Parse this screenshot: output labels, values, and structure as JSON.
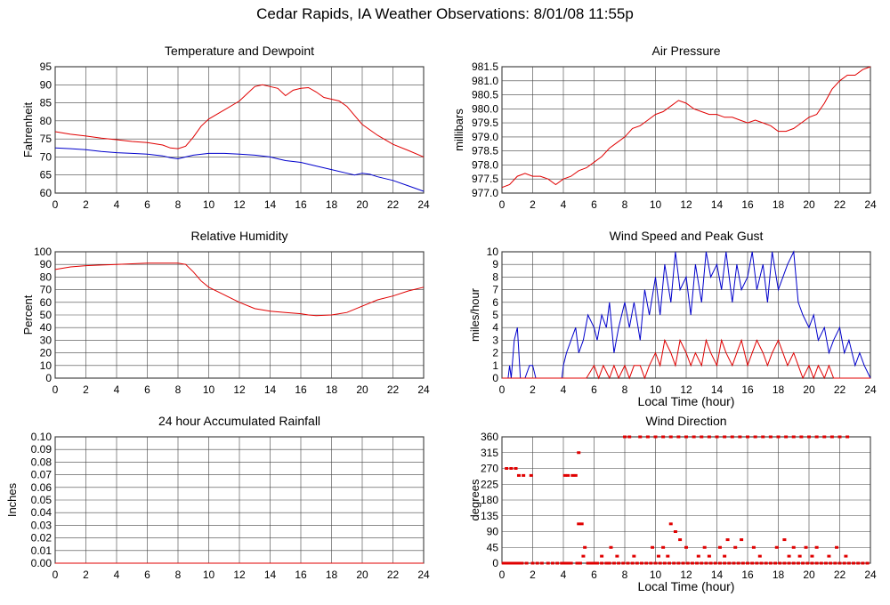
{
  "title": "Cedar Rapids, IA Weather Observations: 8/01/08 11:55p",
  "colors": {
    "red": "#e00000",
    "blue": "#0000cc",
    "grid": "#000000"
  },
  "chart_data": [
    {
      "id": "temp",
      "type": "line",
      "title": "Temperature and Dewpoint",
      "xlabel": "",
      "ylabel": "Fahrenheit",
      "xlim": [
        0,
        24
      ],
      "ylim": [
        60,
        95
      ],
      "xticks": [
        0,
        2,
        4,
        6,
        8,
        10,
        12,
        14,
        16,
        18,
        20,
        22,
        24
      ],
      "yticks": [
        60,
        65,
        70,
        75,
        80,
        85,
        90,
        95
      ],
      "series": [
        {
          "color": "#e00000",
          "x": [
            0,
            1,
            2,
            3,
            4,
            5,
            6,
            7,
            7.5,
            8,
            8.5,
            9,
            9.5,
            10,
            11,
            12,
            12.5,
            13,
            13.5,
            14,
            14.5,
            15,
            15.5,
            16,
            16.5,
            17,
            17.5,
            18,
            18.5,
            19,
            19.5,
            20,
            21,
            22,
            23,
            24
          ],
          "y": [
            77,
            76.3,
            75.8,
            75.2,
            74.8,
            74.3,
            74,
            73.3,
            72.5,
            72.3,
            73,
            75.5,
            78.5,
            80.5,
            83,
            85.5,
            87.5,
            89.5,
            90,
            89.5,
            89,
            87,
            88.5,
            89,
            89.2,
            88,
            86.5,
            86,
            85.5,
            84,
            81.5,
            79,
            76,
            73.5,
            71.8,
            70
          ]
        },
        {
          "color": "#0000cc",
          "x": [
            0,
            1,
            2,
            3,
            4,
            5,
            6,
            7,
            7.5,
            8,
            8.5,
            9,
            10,
            11,
            12,
            13,
            14,
            14.5,
            15,
            16,
            17,
            18,
            19,
            19.5,
            20,
            20.5,
            21,
            22,
            23,
            24
          ],
          "y": [
            72.5,
            72.3,
            72,
            71.5,
            71.2,
            71,
            70.8,
            70.3,
            69.8,
            69.5,
            70,
            70.5,
            71,
            71,
            70.8,
            70.5,
            70,
            69.5,
            69,
            68.5,
            67.5,
            66.5,
            65.5,
            65,
            65.5,
            65.2,
            64.5,
            63.5,
            62,
            60.5
          ]
        }
      ]
    },
    {
      "id": "pressure",
      "type": "line",
      "title": "Air Pressure",
      "xlabel": "",
      "ylabel": "millibars",
      "xlim": [
        0,
        24
      ],
      "ylim": [
        977.0,
        981.5
      ],
      "xticks": [
        0,
        2,
        4,
        6,
        8,
        10,
        12,
        14,
        16,
        18,
        20,
        22,
        24
      ],
      "yticks": [
        "977.0",
        "977.5",
        "978.0",
        "978.5",
        "979.0",
        "979.5",
        "980.0",
        "980.5",
        "981.0",
        "981.5"
      ],
      "series": [
        {
          "color": "#e00000",
          "x": [
            0,
            0.5,
            1,
            1.5,
            2,
            2.5,
            3,
            3.5,
            4,
            4.5,
            5,
            5.5,
            6,
            6.5,
            7,
            7.5,
            8,
            8.5,
            9,
            9.5,
            10,
            10.5,
            11,
            11.5,
            12,
            12.5,
            13,
            13.5,
            14,
            14.5,
            15,
            15.5,
            16,
            16.5,
            17,
            17.5,
            18,
            18.5,
            19,
            19.5,
            20,
            20.5,
            21,
            21.5,
            22,
            22.5,
            23,
            23.5,
            24
          ],
          "y": [
            977.2,
            977.3,
            977.6,
            977.7,
            977.6,
            977.6,
            977.5,
            977.3,
            977.5,
            977.6,
            977.8,
            977.9,
            978.1,
            978.3,
            978.6,
            978.8,
            979.0,
            979.3,
            979.4,
            979.6,
            979.8,
            979.9,
            980.1,
            980.3,
            980.2,
            980.0,
            979.9,
            979.8,
            979.8,
            979.7,
            979.7,
            979.6,
            979.5,
            979.6,
            979.5,
            979.4,
            979.2,
            979.2,
            979.3,
            979.5,
            979.7,
            979.8,
            980.2,
            980.7,
            981.0,
            981.2,
            981.2,
            981.4,
            981.5
          ]
        }
      ]
    },
    {
      "id": "humidity",
      "type": "line",
      "title": "Relative Humidity",
      "xlabel": "",
      "ylabel": "Percent",
      "xlim": [
        0,
        24
      ],
      "ylim": [
        0,
        100
      ],
      "xticks": [
        0,
        2,
        4,
        6,
        8,
        10,
        12,
        14,
        16,
        18,
        20,
        22,
        24
      ],
      "yticks": [
        0,
        10,
        20,
        30,
        40,
        50,
        60,
        70,
        80,
        90,
        100
      ],
      "series": [
        {
          "color": "#e00000",
          "x": [
            0,
            1,
            2,
            3,
            4,
            5,
            6,
            7,
            8,
            8.5,
            9,
            9.5,
            10,
            11,
            12,
            13,
            14,
            15,
            16,
            16.5,
            17,
            18,
            19,
            20,
            21,
            22,
            23,
            24
          ],
          "y": [
            86,
            88,
            89,
            89.5,
            90,
            90.5,
            91,
            91,
            91,
            90,
            84,
            77,
            72,
            66,
            60,
            55,
            53,
            52,
            51,
            50,
            49.5,
            50,
            52,
            57,
            62,
            65,
            69,
            72
          ]
        }
      ]
    },
    {
      "id": "wind",
      "type": "line",
      "title": "Wind Speed and Peak Gust",
      "xlabel": "Local Time (hour)",
      "ylabel": "miles/hour",
      "xlim": [
        0,
        24
      ],
      "ylim": [
        0,
        10
      ],
      "xticks": [
        0,
        2,
        4,
        6,
        8,
        10,
        12,
        14,
        16,
        18,
        20,
        22,
        24
      ],
      "yticks": [
        0,
        1,
        2,
        3,
        4,
        5,
        6,
        7,
        8,
        9,
        10
      ],
      "series": [
        {
          "color": "#0000cc",
          "x": [
            0,
            0.4,
            0.5,
            0.6,
            0.8,
            1.0,
            1.2,
            1.5,
            1.8,
            2.0,
            2.2,
            3.9,
            4.0,
            4.2,
            4.5,
            4.8,
            5.0,
            5.3,
            5.6,
            6.0,
            6.2,
            6.5,
            6.8,
            7.0,
            7.3,
            7.6,
            8.0,
            8.3,
            8.6,
            9.0,
            9.3,
            9.6,
            10.0,
            10.3,
            10.6,
            11.0,
            11.3,
            11.6,
            12.0,
            12.3,
            12.6,
            13.0,
            13.3,
            13.6,
            14.0,
            14.3,
            14.6,
            15.0,
            15.3,
            15.6,
            16.0,
            16.3,
            16.6,
            17.0,
            17.3,
            17.6,
            18.0,
            18.3,
            18.6,
            19.0,
            19.3,
            19.6,
            20.0,
            20.3,
            20.6,
            21.0,
            21.3,
            21.6,
            22.0,
            22.3,
            22.6,
            23.0,
            23.3,
            23.6,
            24.0
          ],
          "y": [
            0,
            0,
            1,
            0,
            3,
            4,
            0,
            0,
            1,
            1,
            0,
            0,
            1,
            2,
            3,
            4,
            2,
            3,
            5,
            4,
            3,
            5,
            4,
            6,
            2,
            4,
            6,
            4,
            6,
            3,
            7,
            5,
            8,
            5,
            9,
            6,
            10,
            7,
            8,
            5,
            9,
            6,
            10,
            8,
            9,
            7,
            10,
            6,
            9,
            7,
            8,
            10,
            7,
            9,
            6,
            10,
            7,
            8,
            9,
            10,
            6,
            5,
            4,
            5,
            3,
            4,
            2,
            3,
            4,
            2,
            3,
            1,
            2,
            1,
            0
          ]
        },
        {
          "color": "#e00000",
          "x": [
            0,
            5.5,
            6.0,
            6.3,
            6.6,
            7.0,
            7.3,
            7.6,
            8.0,
            8.3,
            8.6,
            9.0,
            9.3,
            9.6,
            10.0,
            10.3,
            10.6,
            11.0,
            11.3,
            11.6,
            12.0,
            12.3,
            12.6,
            13.0,
            13.3,
            13.6,
            14.0,
            14.3,
            14.6,
            15.0,
            15.3,
            15.6,
            16.0,
            16.3,
            16.6,
            17.0,
            17.3,
            17.6,
            18.0,
            18.3,
            18.6,
            19.0,
            19.3,
            19.6,
            20.0,
            20.3,
            20.6,
            21.0,
            21.3,
            21.6,
            22.0,
            24
          ],
          "y": [
            0,
            0,
            1,
            0,
            1,
            0,
            1,
            0,
            1,
            0,
            1,
            1,
            0,
            1,
            2,
            1,
            3,
            2,
            1,
            3,
            2,
            1,
            2,
            1,
            3,
            2,
            1,
            3,
            2,
            1,
            2,
            3,
            1,
            2,
            3,
            2,
            1,
            2,
            3,
            2,
            1,
            2,
            1,
            0,
            1,
            0,
            1,
            0,
            1,
            0,
            0,
            0
          ]
        }
      ]
    },
    {
      "id": "rain",
      "type": "line",
      "title": "24 hour Accumulated Rainfall",
      "xlabel": "",
      "ylabel": "Inches",
      "xlim": [
        0,
        24
      ],
      "ylim": [
        0,
        0.1
      ],
      "xticks": [
        0,
        2,
        4,
        6,
        8,
        10,
        12,
        14,
        16,
        18,
        20,
        22,
        24
      ],
      "yticks": [
        "0.00",
        "0.01",
        "0.02",
        "0.03",
        "0.04",
        "0.05",
        "0.06",
        "0.07",
        "0.08",
        "0.09",
        "0.10"
      ],
      "series": [
        {
          "color": "#e00000",
          "x": [
            0,
            24
          ],
          "y": [
            0,
            0
          ]
        }
      ]
    },
    {
      "id": "direction",
      "type": "scatter",
      "title": "Wind Direction",
      "xlabel": "Local Time (hour)",
      "ylabel": "degrees",
      "xlim": [
        0,
        24
      ],
      "ylim": [
        0,
        360
      ],
      "xticks": [
        0,
        2,
        4,
        6,
        8,
        10,
        12,
        14,
        16,
        18,
        20,
        22,
        24
      ],
      "yticks": [
        0,
        45,
        90,
        135,
        180,
        225,
        270,
        315,
        360
      ],
      "series": [
        {
          "color": "#e00000",
          "x": [
            0.1,
            0.3,
            0.5,
            0.7,
            0.9,
            1.1,
            1.3,
            1.6,
            2.0,
            2.3,
            2.6,
            3.0,
            3.3,
            3.6,
            3.9,
            4.1,
            4.3,
            4.5,
            4.9,
            5.1,
            5.3,
            5.6,
            5.8,
            6.0,
            6.2,
            6.5,
            6.8,
            7.0,
            7.3,
            7.6,
            7.9,
            8.2,
            8.5,
            8.8,
            9.1,
            9.4,
            9.7,
            10.0,
            10.3,
            10.6,
            10.9,
            11.2,
            11.5,
            11.8,
            12.1,
            12.4,
            12.7,
            13.0,
            13.3,
            13.6,
            13.9,
            14.2,
            14.5,
            14.8,
            15.1,
            15.4,
            15.7,
            16.0,
            16.3,
            16.6,
            16.9,
            17.2,
            17.5,
            17.8,
            18.1,
            18.4,
            18.7,
            19.0,
            19.3,
            19.6,
            19.9,
            20.2,
            20.5,
            20.8,
            21.1,
            21.4,
            21.7,
            22.0,
            22.3,
            22.6,
            22.9,
            23.2,
            23.5,
            23.8,
            0.3,
            0.6,
            0.9,
            1.1,
            1.4,
            1.9,
            4.1,
            4.3,
            4.6,
            4.8,
            5.0,
            5.0,
            5.2,
            5.4,
            6.5,
            7.1,
            7.5,
            8.6,
            9.8,
            10.2,
            10.5,
            10.8,
            11.0,
            11.3,
            11.6,
            12.0,
            12.8,
            13.2,
            13.5,
            14.2,
            14.5,
            14.7,
            15.2,
            15.6,
            16.4,
            16.8,
            17.9,
            18.4,
            18.7,
            19.0,
            19.4,
            19.8,
            20.2,
            20.5,
            21.3,
            21.8,
            22.4,
            8.0,
            8.3,
            9.0,
            9.5,
            10.0,
            10.5,
            11.0,
            11.5,
            12.0,
            12.5,
            13.0,
            13.5,
            14.0,
            14.5,
            15.0,
            15.5,
            16.0,
            16.5,
            17.0,
            17.5,
            18.0,
            18.5,
            19.0,
            19.5,
            20.0,
            20.5,
            21.0,
            21.5,
            22.0,
            22.5
          ],
          "y": [
            0,
            0,
            0,
            0,
            0,
            0,
            0,
            0,
            0,
            0,
            0,
            0,
            0,
            0,
            0,
            0,
            0,
            0,
            0,
            0,
            20,
            0,
            0,
            0,
            0,
            0,
            0,
            0,
            0,
            0,
            0,
            0,
            0,
            0,
            0,
            0,
            0,
            0,
            0,
            0,
            0,
            0,
            0,
            0,
            0,
            0,
            0,
            0,
            0,
            0,
            0,
            0,
            0,
            0,
            0,
            0,
            0,
            0,
            0,
            0,
            0,
            0,
            0,
            0,
            0,
            0,
            0,
            0,
            0,
            0,
            0,
            0,
            0,
            0,
            0,
            0,
            0,
            0,
            0,
            0,
            0,
            0,
            0,
            0,
            270,
            270,
            270,
            250,
            250,
            250,
            250,
            250,
            250,
            250,
            315,
            112,
            112,
            45,
            20,
            45,
            20,
            20,
            45,
            20,
            45,
            20,
            112,
            90,
            67,
            45,
            20,
            45,
            20,
            45,
            20,
            67,
            45,
            67,
            45,
            20,
            45,
            67,
            20,
            45,
            20,
            45,
            20,
            45,
            20,
            45,
            20,
            360,
            360,
            360,
            360,
            360,
            360,
            360,
            360,
            360,
            360,
            360,
            360,
            360,
            360,
            360,
            360,
            360,
            360,
            360,
            360,
            360,
            360,
            360,
            360,
            360,
            360,
            360,
            360,
            360,
            360
          ]
        }
      ]
    }
  ]
}
